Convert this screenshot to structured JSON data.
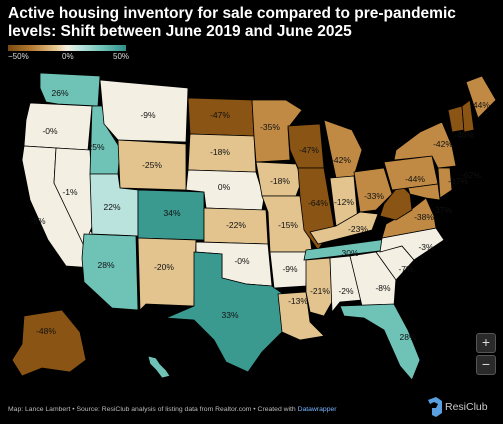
{
  "title": "Active housing inventory for sale compared to pre-pandemic levels: Shift between June 2019 and June 2025",
  "legend": {
    "min_label": "−50%",
    "mid_label": "0%",
    "max_label": "50%"
  },
  "colors": {
    "strong_decline": "#8a5414",
    "decline": "#c08a44",
    "mild_decline": "#e3c48f",
    "flat": "#f3efe2",
    "mild_increase": "#b9e3dc",
    "increase": "#6fc2b6",
    "strong_increase": "#3a9a90",
    "background": "#000000"
  },
  "states": [
    {
      "name": "Washington",
      "label": "26%",
      "value": 26
    },
    {
      "name": "Oregon",
      "label": "-0%",
      "value": 0
    },
    {
      "name": "California",
      "label": "-5%",
      "value": -5
    },
    {
      "name": "Nevada",
      "label": "-1%",
      "value": -1
    },
    {
      "name": "Idaho",
      "label": "25%",
      "value": 25
    },
    {
      "name": "Montana",
      "label": "-9%",
      "value": -9
    },
    {
      "name": "Wyoming",
      "label": "-25%",
      "value": -25
    },
    {
      "name": "Utah",
      "label": "22%",
      "value": 22
    },
    {
      "name": "Arizona",
      "label": "28%",
      "value": 28
    },
    {
      "name": "Colorado",
      "label": "34%",
      "value": 34
    },
    {
      "name": "New Mexico",
      "label": "-20%",
      "value": -20
    },
    {
      "name": "North Dakota",
      "label": "-47%",
      "value": -47
    },
    {
      "name": "South Dakota",
      "label": "-18%",
      "value": -18
    },
    {
      "name": "Nebraska",
      "label": "0%",
      "value": 0
    },
    {
      "name": "Kansas",
      "label": "-22%",
      "value": -22
    },
    {
      "name": "Oklahoma",
      "label": "-0%",
      "value": 0
    },
    {
      "name": "Texas",
      "label": "33%",
      "value": 33
    },
    {
      "name": "Minnesota",
      "label": "-35%",
      "value": -35
    },
    {
      "name": "Iowa",
      "label": "-18%",
      "value": -18
    },
    {
      "name": "Missouri",
      "label": "-15%",
      "value": -15
    },
    {
      "name": "Arkansas",
      "label": "-9%",
      "value": -9
    },
    {
      "name": "Louisiana",
      "label": "-13%",
      "value": -13
    },
    {
      "name": "Wisconsin",
      "label": "-47%",
      "value": -47
    },
    {
      "name": "Illinois",
      "label": "-64%",
      "value": -64
    },
    {
      "name": "Michigan",
      "label": "-42%",
      "value": -42
    },
    {
      "name": "Indiana",
      "label": "-12%",
      "value": -12
    },
    {
      "name": "Ohio",
      "label": "-33%",
      "value": -33
    },
    {
      "name": "Kentucky",
      "label": "-23%",
      "value": -23
    },
    {
      "name": "Tennessee",
      "label": "30%",
      "value": 30
    },
    {
      "name": "Mississippi",
      "label": "-21%",
      "value": -21
    },
    {
      "name": "Alabama",
      "label": "-2%",
      "value": -2
    },
    {
      "name": "Georgia",
      "label": "-8%",
      "value": -8
    },
    {
      "name": "Florida",
      "label": "28%",
      "value": 28
    },
    {
      "name": "South Carolina",
      "label": "-7%",
      "value": -7
    },
    {
      "name": "North Carolina",
      "label": "-3%",
      "value": -3
    },
    {
      "name": "Virginia",
      "label": "-38%",
      "value": -38
    },
    {
      "name": "West Virginia",
      "label": "",
      "value": -55
    },
    {
      "name": "Pennsylvania",
      "label": "-44%",
      "value": -44
    },
    {
      "name": "New York",
      "label": "-42%",
      "value": -42
    },
    {
      "name": "Vermont",
      "label": "-46%",
      "value": -46
    },
    {
      "name": "New Hampshire",
      "label": "-62%",
      "value": -62
    },
    {
      "name": "Maine",
      "label": "-44%",
      "value": -44
    },
    {
      "name": "Maryland",
      "label": "-37%",
      "value": -37
    },
    {
      "name": "New Jersey",
      "label": "-37%",
      "value": -37
    },
    {
      "name": "Alaska",
      "label": "-48%",
      "value": -48
    },
    {
      "name": "Hawaii",
      "label": "",
      "value": 25
    }
  ],
  "controls": {
    "zoom_in": "+",
    "zoom_out": "−"
  },
  "footer": {
    "text": "Map: Lance Lambert • Source: ResiClub analysis of listing data from Realtor.com • Created with ",
    "link": "Datawrapper"
  },
  "brand": {
    "name": "ResiClub"
  }
}
